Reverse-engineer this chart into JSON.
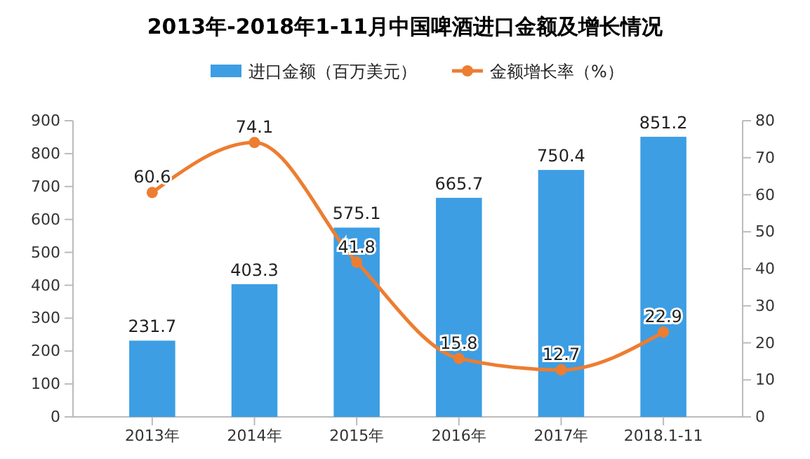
{
  "chart_data": {
    "type": "bar",
    "title": "2013年-2018年1-11月中国啤酒进口金额及增长情况",
    "categories": [
      "2013年",
      "2014年",
      "2015年",
      "2016年",
      "2017年",
      "2018.1-11"
    ],
    "series": [
      {
        "name": "进口金额（百万美元）",
        "color": "#3d9ee4",
        "values": [
          231.7,
          403.3,
          575.1,
          665.7,
          750.4,
          851.2
        ]
      },
      {
        "name": "金额增长率（%）",
        "type": "line",
        "axis": "y2",
        "color": "#ed7d31",
        "values": [
          60.6,
          74.1,
          41.8,
          15.8,
          12.7,
          22.9
        ]
      }
    ],
    "ylim": [
      0,
      900
    ],
    "yticks": [
      0,
      100,
      200,
      300,
      400,
      500,
      600,
      700,
      800,
      900
    ],
    "y2lim": [
      0,
      80
    ],
    "y2ticks": [
      0,
      10,
      20,
      30,
      40,
      50,
      60,
      70,
      80
    ],
    "data_labels": true,
    "legend": "top",
    "grid": false,
    "marker": "circle",
    "line_style": "solid"
  }
}
